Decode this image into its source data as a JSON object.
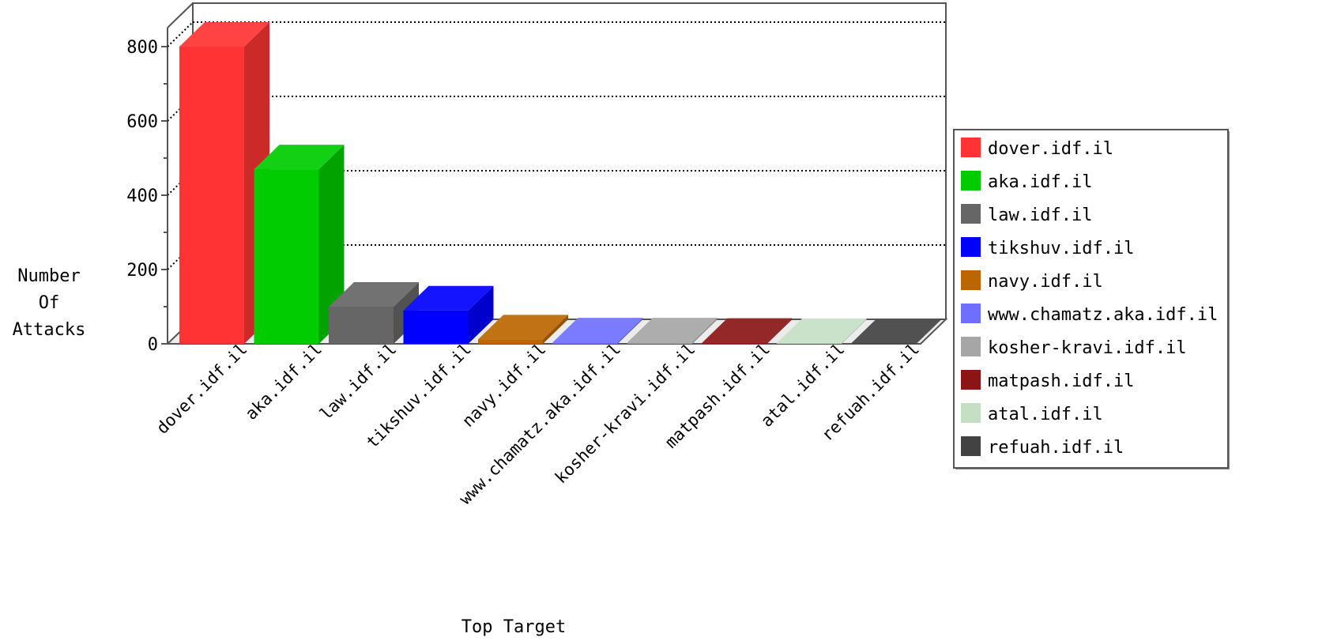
{
  "chart_data": {
    "type": "bar",
    "style": "3d",
    "categories": [
      "dover.idf.il",
      "aka.idf.il",
      "law.idf.il",
      "tikshuv.idf.il",
      "navy.idf.il",
      "www.chamatz.aka.idf.il",
      "kosher-kravi.idf.il",
      "matpash.idf.il",
      "atal.idf.il",
      "refuah.idf.il"
    ],
    "values": [
      800,
      470,
      100,
      90,
      12,
      4,
      4,
      3,
      2,
      2
    ],
    "colors": [
      "#ff3333",
      "#00cc00",
      "#666666",
      "#0000ff",
      "#bb6600",
      "#6f6fff",
      "#a6a6a6",
      "#8b1515",
      "#c4dfc4",
      "#424242"
    ],
    "xlabel": "Top Target",
    "ylabel": [
      "Number",
      "Of",
      "Attacks"
    ],
    "ylim": [
      0,
      800
    ],
    "yticks": [
      0,
      200,
      400,
      600,
      800
    ],
    "grid": true,
    "legend": {
      "position": "right",
      "entries": [
        "dover.idf.il",
        "aka.idf.il",
        "law.idf.il",
        "tikshuv.idf.il",
        "navy.idf.il",
        "www.chamatz.aka.idf.il",
        "kosher-kravi.idf.il",
        "matpash.idf.il",
        "atal.idf.il",
        "refuah.idf.il"
      ]
    }
  }
}
